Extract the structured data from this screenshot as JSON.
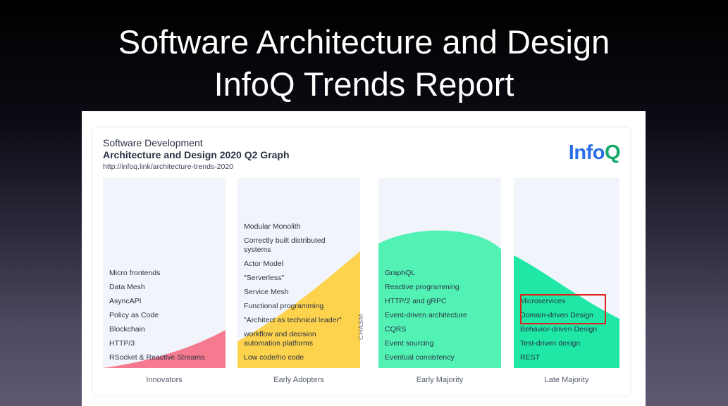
{
  "slide": {
    "title_line1": "Software Architecture and Design",
    "title_line2": "InfoQ Trends Report"
  },
  "graph": {
    "subtitle": "Software Development",
    "title": "Architecture and Design 2020 Q2 Graph",
    "url": "http://infoq.link/architecture-trends-2020",
    "logo_part1": "Info",
    "logo_part2": "Q",
    "chasm_label": "CHASM",
    "colors": {
      "innovators": "#f5798f",
      "early_adopters": "#fdd24d",
      "early_majority": "#52f2b5",
      "late_majority": "#1fe8a7",
      "highlight": "#e0201c"
    },
    "columns": [
      {
        "label": "Innovators",
        "items": [
          "Micro frontends",
          "Data Mesh",
          "AsyncAPI",
          "Policy as Code",
          "Blockchain",
          "HTTP/3",
          "RSocket & Reactive Streams"
        ]
      },
      {
        "label": "Early Adopters",
        "items": [
          "Modular Monolith",
          "Correctly built distributed systems",
          "Actor Model",
          "\"Serverless\"",
          "Service Mesh",
          "Functional programming",
          "\"Architect as technical leader\"",
          "workflow and decision automation platforms",
          "Low code/no code"
        ]
      },
      {
        "label": "Early Majority",
        "items": [
          "GraphQL",
          "Reactive programming",
          "HTTP/2 and gRPC",
          "Event-driven architecture",
          "CQRS",
          "Event sourcing",
          "Eventual consistency"
        ]
      },
      {
        "label": "Late Majority",
        "items": [
          "Microservices",
          "Domain-driven Design",
          "Behavior-driven Design",
          "Test-driven design",
          "REST"
        ]
      }
    ],
    "highlighted_items": [
      "Microservices",
      "Domain-driven Design"
    ]
  }
}
